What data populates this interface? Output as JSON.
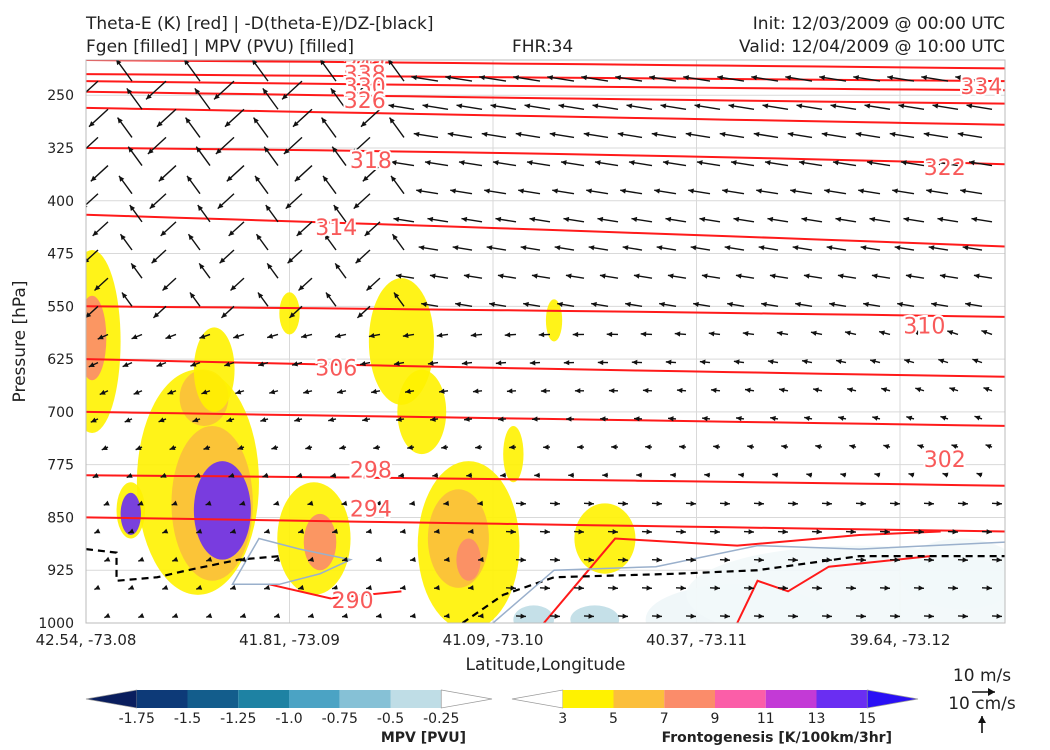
{
  "header": {
    "line1_left": "Theta-E (K) [red] | -D(theta-E)/DZ-[black]",
    "line2_left": "Fgen [filled] | MPV (PVU) [filled]",
    "fhr": "FHR:34",
    "init": "Init: 12/03/2009 @ 00:00 UTC",
    "valid": "Valid: 12/04/2009 @ 10:00 UTC"
  },
  "chart_data": {
    "type": "cross-section",
    "xlabel": "Latitude,Longitude",
    "ylabel": "Pressure [hPa]",
    "x_ticks": [
      "42.54, -73.08",
      "41.81, -73.09",
      "41.09, -73.10",
      "40.37, -73.11",
      "39.64, -73.12"
    ],
    "y_ticks": [
      250,
      325,
      400,
      475,
      550,
      625,
      700,
      775,
      850,
      925,
      1000
    ],
    "ylim": [
      200,
      1000
    ],
    "y_inverted": true,
    "grid": true,
    "theta_e_labels": [
      {
        "value": "342",
        "x_index": 1.37,
        "p": 210
      },
      {
        "value": "338",
        "x_index": 1.37,
        "p": 222
      },
      {
        "value": "330",
        "x_index": 1.37,
        "p": 240
      },
      {
        "value": "326",
        "x_index": 1.37,
        "p": 260
      },
      {
        "value": "334",
        "x_index": 4.4,
        "p": 240
      },
      {
        "value": "318",
        "x_index": 1.4,
        "p": 345
      },
      {
        "value": "322",
        "x_index": 4.22,
        "p": 355
      },
      {
        "value": "314",
        "x_index": 1.23,
        "p": 440
      },
      {
        "value": "310",
        "x_index": 4.12,
        "p": 580
      },
      {
        "value": "306",
        "x_index": 1.23,
        "p": 640
      },
      {
        "value": "298",
        "x_index": 1.4,
        "p": 785
      },
      {
        "value": "302",
        "x_index": 4.22,
        "p": 770
      },
      {
        "value": "294",
        "x_index": 1.4,
        "p": 840
      },
      {
        "value": "290",
        "x_index": 1.31,
        "p": 970
      }
    ],
    "wind_reference": {
      "u_label": "10 m/s",
      "w_label": "10 cm/s"
    },
    "colorbars": [
      {
        "label": "MPV [PVU]",
        "ticks": [
          "-1.75",
          "-1.5",
          "-1.25",
          "-1.0",
          "-0.75",
          "-0.5",
          "-0.25"
        ],
        "colors": [
          "#0a1e5e",
          "#0d3a78",
          "#135d8c",
          "#1e82a3",
          "#4ba3c4",
          "#86c1d6",
          "#bfdde6",
          "#ffffff"
        ]
      },
      {
        "label": "Frontogenesis [K/100km/3hr]",
        "ticks": [
          "3",
          "5",
          "7",
          "9",
          "11",
          "13",
          "15"
        ],
        "colors": [
          "#ffffff",
          "#fff200",
          "#fbbf3c",
          "#fb8c6a",
          "#fb5ea8",
          "#c33ad6",
          "#6a2ef2",
          "#2a10f5"
        ]
      }
    ]
  }
}
